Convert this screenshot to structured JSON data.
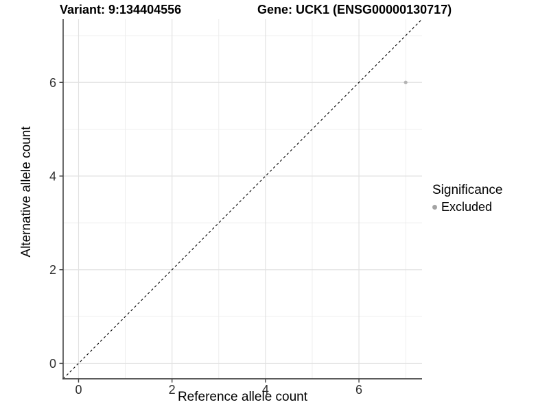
{
  "chart_data": {
    "type": "scatter",
    "title_variant": "Variant: 9:134404556",
    "title_gene": "Gene: UCK1 (ENSG00000130717)",
    "xlabel": "Reference allele count",
    "ylabel": "Alternative allele count",
    "xlim": [
      -0.33,
      7.35
    ],
    "ylim": [
      -0.33,
      7.35
    ],
    "x_ticks": [
      0,
      2,
      4,
      6
    ],
    "y_ticks": [
      0,
      2,
      4,
      6
    ],
    "x_minor_gridlines": [
      1,
      3,
      5,
      7
    ],
    "y_minor_gridlines": [
      1,
      3,
      5,
      7
    ],
    "points": [
      {
        "x": 7,
        "y": 6,
        "significance": "Excluded",
        "color": "#b3b3b3",
        "radius": 2.6
      }
    ],
    "reference_line": {
      "description": "identity line y = x",
      "style": "dashed",
      "color": "#000000"
    },
    "legend": {
      "title": "Significance",
      "position": "right",
      "items": [
        {
          "label": "Excluded",
          "color": "#a3a3a3"
        }
      ]
    },
    "style": {
      "background": "#ffffff",
      "major_grid_color": "#e2e2e2",
      "minor_grid_color": "#ececec",
      "axis_line_color": "#444444",
      "tick_label_color": "#303030"
    }
  }
}
